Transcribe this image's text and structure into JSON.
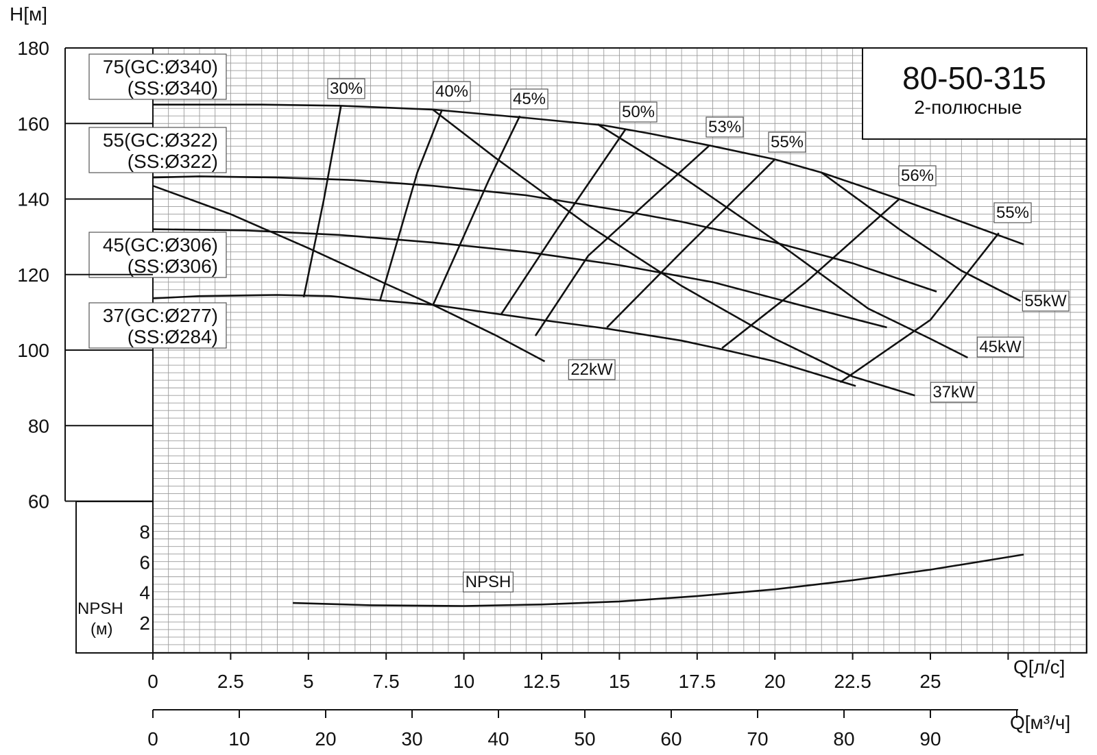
{
  "chart_data": {
    "type": "line",
    "title": "80-50-315",
    "subtitle": "2-полюсные",
    "ylabel": "H[м]",
    "xlabel": "Q[л/с]",
    "x2label": "Q[м³/ч]",
    "npsh_label": "NPSH",
    "npsh_unit": "(м)",
    "xlim": [
      0,
      30
    ],
    "ylim": [
      60,
      180
    ],
    "x_ticks": [
      "0",
      "2.5",
      "5",
      "7.5",
      "10",
      "12.5",
      "15",
      "17.5",
      "20",
      "22.5",
      "25"
    ],
    "x2_ticks": [
      "0",
      "10",
      "20",
      "30",
      "40",
      "50",
      "60",
      "70",
      "80",
      "90"
    ],
    "y_ticks": [
      "60",
      "80",
      "100",
      "120",
      "140",
      "160",
      "180"
    ],
    "npsh_ticks": [
      "2",
      "4",
      "6",
      "8"
    ],
    "npsh_ylim": [
      0,
      10
    ],
    "grid": true,
    "head_curves": [
      {
        "name": "75(GC:Ø340)",
        "name2": "(SS:Ø340)",
        "x": [
          0,
          3.5,
          6,
          9,
          12,
          14.5,
          16,
          18,
          20,
          21.5,
          24,
          26,
          28
        ],
        "y": [
          165,
          165,
          164.7,
          163.7,
          161.5,
          159.5,
          157.3,
          154,
          150.5,
          147,
          140,
          134,
          128
        ]
      },
      {
        "name": "55(GC:Ø322)",
        "name2": "(SS:Ø322)",
        "x": [
          0,
          1.5,
          4,
          6.5,
          9,
          12,
          15,
          17,
          20,
          22.5,
          25.2
        ],
        "y": [
          145.7,
          146,
          145.7,
          145,
          143.5,
          141,
          137,
          134,
          128.5,
          123,
          115.5
        ]
      },
      {
        "name": "45(GC:Ø306)",
        "name2": "(SS:Ø306)",
        "x": [
          0,
          3,
          6,
          9,
          12,
          15,
          18,
          21,
          23.6
        ],
        "y": [
          132,
          131.7,
          130.5,
          128.5,
          126,
          122.5,
          118,
          111.5,
          106
        ]
      },
      {
        "name": "37(GC:Ø277)",
        "name2": "(SS:Ø284)",
        "x": [
          0,
          1.5,
          4,
          5.7,
          9,
          12,
          14.5,
          17,
          18.3,
          20,
          21,
          22.6
        ],
        "y": [
          113.7,
          114.3,
          114.6,
          114.3,
          112,
          108.5,
          105.8,
          102.5,
          100.2,
          97,
          94.5,
          90.5
        ]
      }
    ],
    "efficiency_curves": [
      {
        "name": "30%",
        "x": [
          4.85,
          5.5,
          6.05
        ],
        "y": [
          114,
          140,
          164.7
        ]
      },
      {
        "name": "40%",
        "x": [
          7.3,
          8.5,
          9.3
        ],
        "y": [
          113,
          147,
          163.7
        ]
      },
      {
        "name": "45%",
        "x": [
          9,
          10.8,
          11.8
        ],
        "y": [
          111.8,
          145,
          162
        ]
      },
      {
        "name": "50%",
        "x": [
          11.2,
          13,
          15.2
        ],
        "y": [
          109.5,
          132,
          158.5
        ]
      },
      {
        "name": "53%",
        "x": [
          12.3,
          14,
          17.9
        ],
        "y": [
          103.8,
          125,
          154.2
        ]
      },
      {
        "name": "55%",
        "x": [
          14.6,
          17,
          20
        ],
        "y": [
          106,
          126,
          150.5
        ]
      },
      {
        "name": "56%",
        "x": [
          18.3,
          21,
          24
        ],
        "y": [
          100.5,
          118,
          140
        ]
      },
      {
        "name": "55%",
        "x": [
          22.1,
          25,
          27.2
        ],
        "y": [
          91.5,
          108,
          131
        ]
      }
    ],
    "power_curves": [
      {
        "name": "22kW",
        "x": [
          0,
          2.5,
          5,
          7.5,
          9,
          11,
          12.6
        ],
        "y": [
          143.5,
          136,
          127,
          117.5,
          112,
          104,
          97
        ]
      },
      {
        "name": "37kW",
        "x": [
          9,
          11,
          14,
          17,
          20,
          22.5,
          24.5
        ],
        "y": [
          163.7,
          151,
          133,
          117,
          103,
          93,
          88
        ]
      },
      {
        "name": "45kW",
        "x": [
          14.3,
          17,
          20,
          23,
          25,
          26.2
        ],
        "y": [
          159.8,
          146,
          129,
          111,
          103,
          98
        ]
      },
      {
        "name": "55kW",
        "x": [
          21.5,
          24,
          26,
          27.9
        ],
        "y": [
          147,
          132,
          121,
          113
        ]
      }
    ],
    "npsh_curve": {
      "name": "NPSH",
      "x": [
        4.5,
        7,
        10,
        12.5,
        15,
        17.5,
        20,
        22.5,
        25,
        28
      ],
      "y": [
        3.3,
        3.15,
        3.1,
        3.2,
        3.4,
        3.75,
        4.2,
        4.8,
        5.5,
        6.5
      ]
    }
  }
}
